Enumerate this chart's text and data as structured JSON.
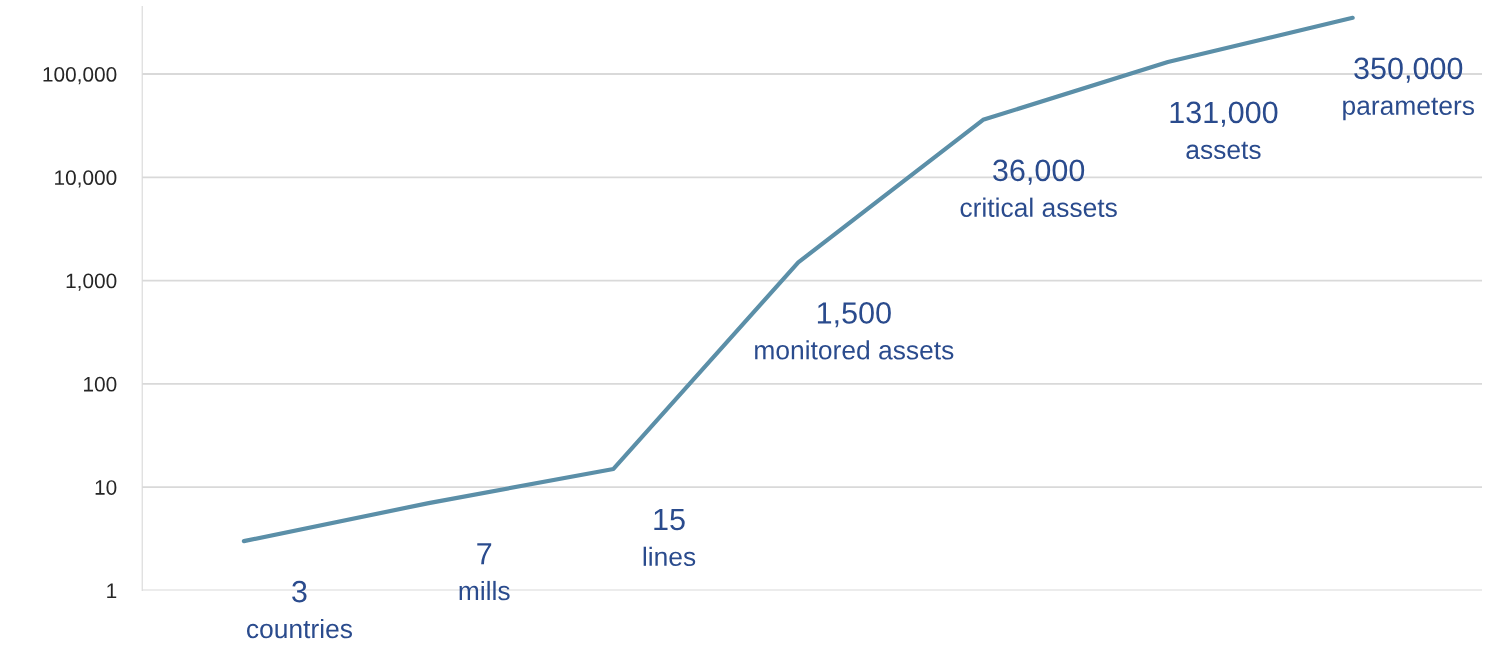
{
  "chart_data": {
    "type": "line",
    "categories": [
      null,
      null,
      null,
      null,
      null,
      null,
      null
    ],
    "series": [
      {
        "color": "#5b8fa8",
        "values": [
          3,
          7,
          15,
          1500,
          36000,
          131000,
          350000
        ],
        "value_labels": [
          "3\ncountries",
          "7\nmills",
          "15\nlines",
          "1,500\nmonitored assets",
          "36,000\ncritical assets",
          "131,000\nassets",
          "350,000\nparameters"
        ]
      }
    ],
    "log": "y",
    "ylim": [
      1,
      450000
    ],
    "yticks": [
      1,
      10,
      100,
      {
        "value": 1000,
        "label": "1,000"
      },
      {
        "value": 10000,
        "label": "10,000"
      },
      {
        "value": 100000,
        "label": "100,000"
      }
    ],
    "grid": "y",
    "tick_labels": "y",
    "marker": "none",
    "line_style": "solid"
  }
}
